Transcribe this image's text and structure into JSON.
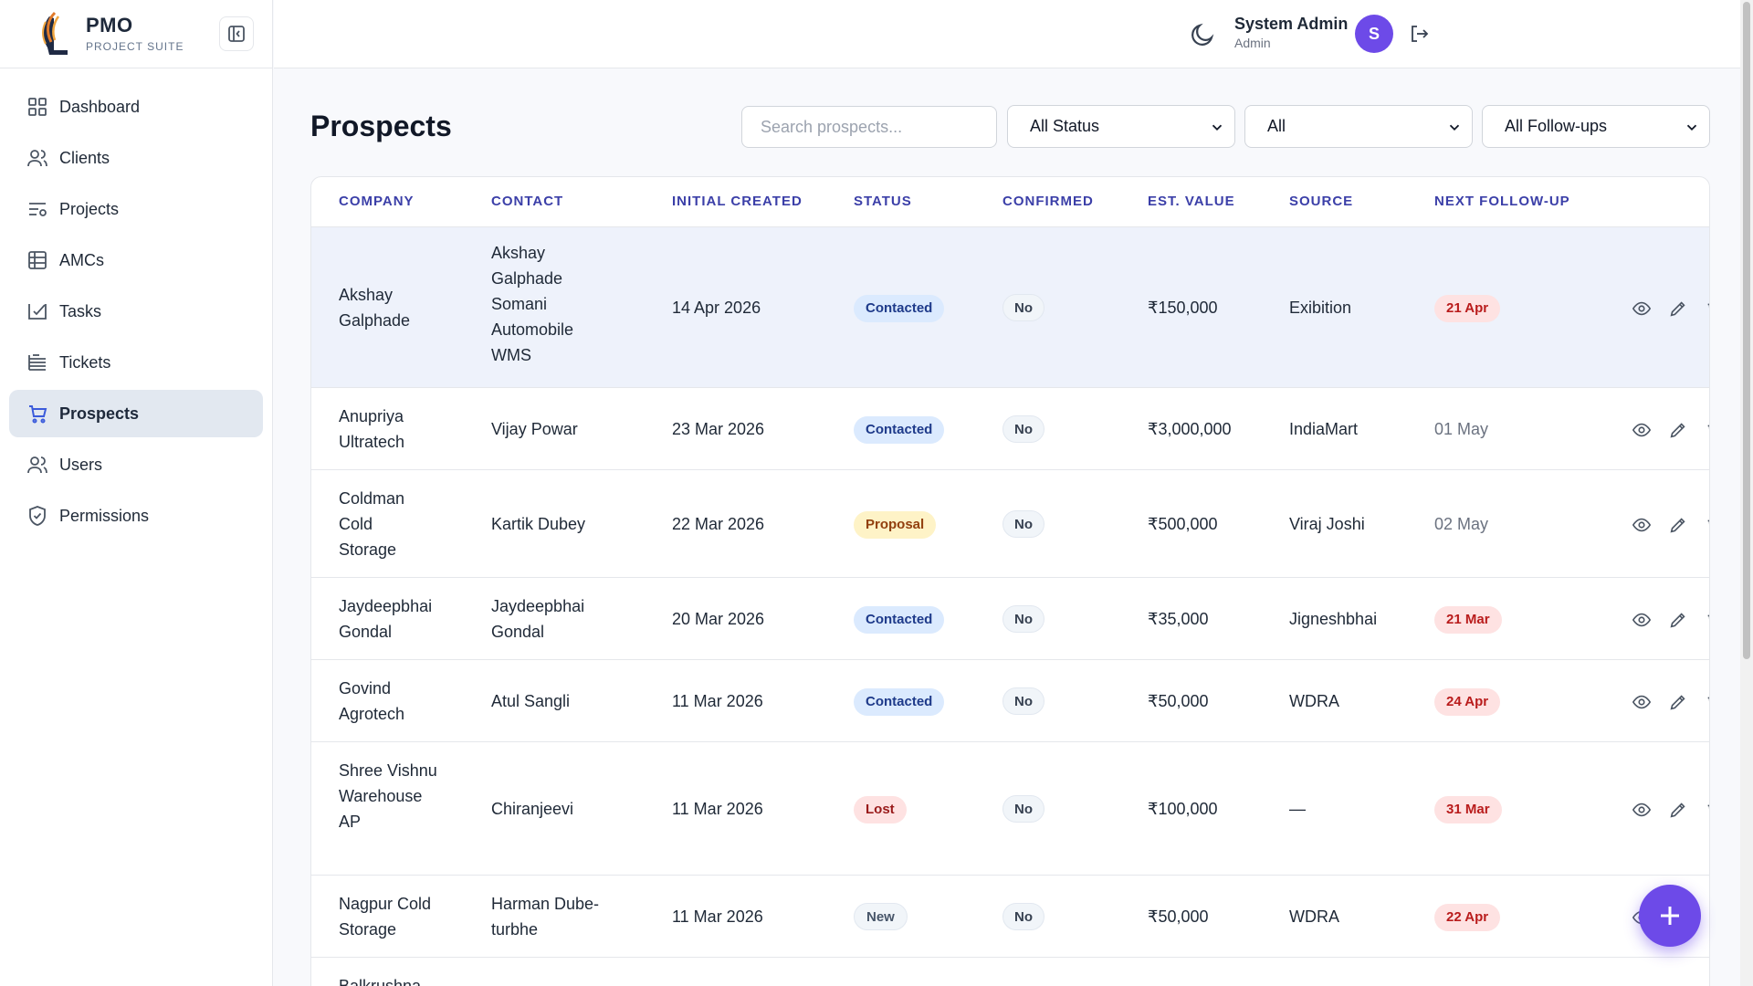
{
  "brand": {
    "name": "PMO",
    "subtitle": "PROJECT SUITE"
  },
  "sidebar": {
    "items": [
      {
        "label": "Dashboard",
        "icon": "dashboard-icon"
      },
      {
        "label": "Clients",
        "icon": "users-icon"
      },
      {
        "label": "Projects",
        "icon": "projects-icon"
      },
      {
        "label": "AMCs",
        "icon": "table-icon"
      },
      {
        "label": "Tasks",
        "icon": "check-icon"
      },
      {
        "label": "Tickets",
        "icon": "tickets-icon"
      },
      {
        "label": "Prospects",
        "icon": "cart-icon",
        "active": true
      },
      {
        "label": "Users",
        "icon": "users-icon"
      },
      {
        "label": "Permissions",
        "icon": "shield-icon"
      }
    ]
  },
  "header": {
    "user_name": "System Admin",
    "user_role": "Admin",
    "avatar_initial": "S"
  },
  "page": {
    "title": "Prospects"
  },
  "filters": {
    "search_placeholder": "Search prospects...",
    "status": "All Status",
    "type": "All",
    "followup": "All Follow-ups"
  },
  "table": {
    "headers": {
      "company": "COMPANY",
      "contact": "CONTACT",
      "created": "INITIAL CREATED",
      "status": "STATUS",
      "confirmed": "CONFIRMED",
      "value": "EST. VALUE",
      "source": "SOURCE",
      "next": "NEXT FOLLOW-UP"
    },
    "rows": [
      {
        "company": "Akshay Galphade",
        "contact": "Akshay Galphade Somani Automobile WMS",
        "created": "14 Apr 2026",
        "status": "Contacted",
        "confirmed": "No",
        "value": "₹150,000",
        "source": "Exibition",
        "next": "21 Apr"
      },
      {
        "company": "Anupriya Ultratech",
        "contact": "Vijay Powar",
        "created": "23 Mar 2026",
        "status": "Contacted",
        "confirmed": "No",
        "value": "₹3,000,000",
        "source": "IndiaMart",
        "next": "01 May"
      },
      {
        "company": "Coldman Cold Storage",
        "contact": "Kartik Dubey",
        "created": "22 Mar 2026",
        "status": "Proposal",
        "confirmed": "No",
        "value": "₹500,000",
        "source": "Viraj Joshi",
        "next": "02 May"
      },
      {
        "company": "Jaydeepbhai Gondal",
        "contact": "Jaydeepbhai Gondal",
        "created": "20 Mar 2026",
        "status": "Contacted",
        "confirmed": "No",
        "value": "₹35,000",
        "source": "Jigneshbhai",
        "next": "21 Mar"
      },
      {
        "company": "Govind Agrotech",
        "contact": "Atul Sangli",
        "created": "11 Mar 2026",
        "status": "Contacted",
        "confirmed": "No",
        "value": "₹50,000",
        "source": "WDRA",
        "next": "24 Apr"
      },
      {
        "company": "Shree Vishnu Warehouse AP",
        "contact": "Chiranjeevi",
        "created": "11 Mar 2026",
        "status": "Lost",
        "confirmed": "No",
        "value": "₹100,000",
        "source": "—",
        "next": "31 Mar"
      },
      {
        "company": "Nagpur Cold Storage",
        "contact": "Harman Dube-turbhe",
        "created": "11 Mar 2026",
        "status": "New",
        "confirmed": "No",
        "value": "₹50,000",
        "source": "WDRA",
        "next": "22 Apr"
      },
      {
        "company": "Balkrushna"
      }
    ]
  },
  "colors": {
    "accent": "#6d4ae8",
    "header_text": "#3b3fa8",
    "active_nav": "#e2e8f0"
  }
}
